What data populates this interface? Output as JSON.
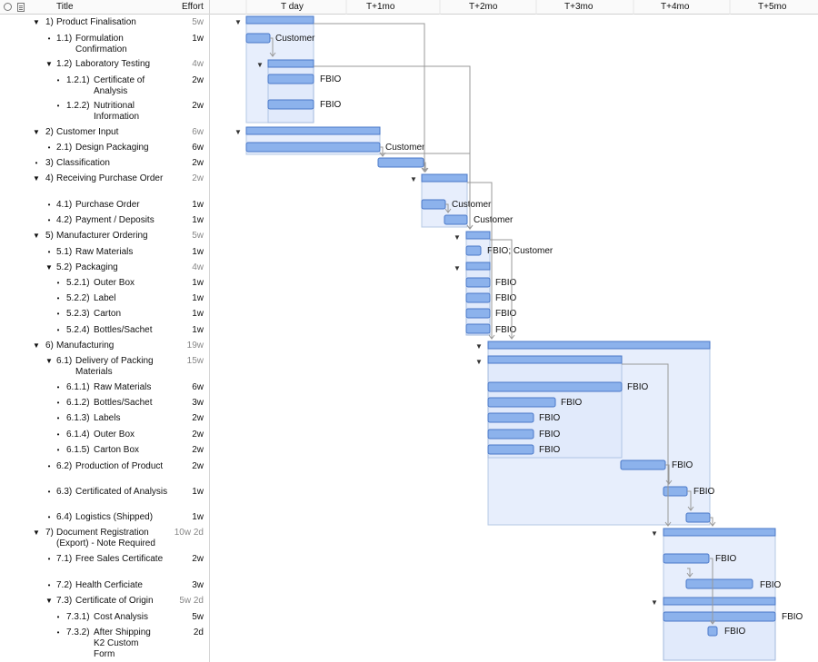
{
  "header": {
    "title_col": "Title",
    "effort_col": "Effort",
    "timeline": [
      "T day",
      "T+1mo",
      "T+2mo",
      "T+3mo",
      "T+4mo",
      "T+5mo"
    ]
  },
  "colors": {
    "bar_fill": "#8cb2ec",
    "bar_stroke": "#4a78c8",
    "group_bg": "#dfe9fb",
    "group_stroke": "#9db6dc",
    "arrow": "#999999",
    "grid": "#e6e6e6"
  },
  "rows": [
    {
      "num": "1)",
      "title": "Product Finalisation",
      "effort": "5w",
      "ctl": "tri",
      "indent": 0,
      "grey": true
    },
    {
      "num": "1.1)",
      "title": "Formulation Confirmation",
      "effort": "1w",
      "ctl": "dot",
      "indent": 1
    },
    {
      "num": "1.2)",
      "title": "Laboratory Testing",
      "effort": "4w",
      "ctl": "tri",
      "indent": 1,
      "grey": true
    },
    {
      "num": "1.2.1)",
      "title": "Certificate of Analysis",
      "effort": "2w",
      "ctl": "dot",
      "indent": 2
    },
    {
      "num": "1.2.2)",
      "title": "Nutritional Information",
      "effort": "2w",
      "ctl": "dot",
      "indent": 2
    },
    {
      "num": "2)",
      "title": "Customer Input",
      "effort": "6w",
      "ctl": "tri",
      "indent": 0,
      "grey": true
    },
    {
      "num": "2.1)",
      "title": "Design Packaging",
      "effort": "6w",
      "ctl": "dot",
      "indent": 1
    },
    {
      "num": "3)",
      "title": "Classification",
      "effort": "2w",
      "ctl": "dot",
      "indent": 0
    },
    {
      "num": "4)",
      "title": "Receiving Purchase Order",
      "effort": "2w",
      "ctl": "tri",
      "indent": 0,
      "grey": true
    },
    {
      "num": "4.1)",
      "title": "Purchase Order",
      "effort": "1w",
      "ctl": "dot",
      "indent": 1
    },
    {
      "num": "4.2)",
      "title": "Payment / Deposits",
      "effort": "1w",
      "ctl": "dot",
      "indent": 1
    },
    {
      "num": "5)",
      "title": "Manufacturer Ordering",
      "effort": "5w",
      "ctl": "tri",
      "indent": 0,
      "grey": true
    },
    {
      "num": "5.1)",
      "title": "Raw Materials",
      "effort": "1w",
      "ctl": "dot",
      "indent": 1
    },
    {
      "num": "5.2)",
      "title": "Packaging",
      "effort": "4w",
      "ctl": "tri",
      "indent": 1,
      "grey": true
    },
    {
      "num": "5.2.1)",
      "title": "Outer Box",
      "effort": "1w",
      "ctl": "dot",
      "indent": 2
    },
    {
      "num": "5.2.2)",
      "title": "Label",
      "effort": "1w",
      "ctl": "dot",
      "indent": 2
    },
    {
      "num": "5.2.3)",
      "title": "Carton",
      "effort": "1w",
      "ctl": "dot",
      "indent": 2
    },
    {
      "num": "5.2.4)",
      "title": "Bottles/Sachet",
      "effort": "1w",
      "ctl": "dot",
      "indent": 2
    },
    {
      "num": "6)",
      "title": "Manufacturing",
      "effort": "19w",
      "ctl": "tri",
      "indent": 0,
      "grey": true
    },
    {
      "num": "6.1)",
      "title": "Delivery of Packing Materials",
      "effort": "15w",
      "ctl": "tri",
      "indent": 1,
      "grey": true
    },
    {
      "num": "6.1.1)",
      "title": "Raw Materials",
      "effort": "6w",
      "ctl": "dot",
      "indent": 2
    },
    {
      "num": "6.1.2)",
      "title": "Bottles/Sachet",
      "effort": "3w",
      "ctl": "dot",
      "indent": 2
    },
    {
      "num": "6.1.3)",
      "title": "Labels",
      "effort": "2w",
      "ctl": "dot",
      "indent": 2
    },
    {
      "num": "6.1.4)",
      "title": "Outer Box",
      "effort": "2w",
      "ctl": "dot",
      "indent": 2
    },
    {
      "num": "6.1.5)",
      "title": "Carton Box",
      "effort": "2w",
      "ctl": "dot",
      "indent": 2
    },
    {
      "num": "6.2)",
      "title": "Production of Product",
      "effort": "2w",
      "ctl": "dot",
      "indent": 1
    },
    {
      "num": "6.3)",
      "title": "Certificated of Analysis",
      "effort": "1w",
      "ctl": "dot",
      "indent": 1
    },
    {
      "num": "6.4)",
      "title": "Logistics (Shipped)",
      "effort": "1w",
      "ctl": "dot",
      "indent": 1
    },
    {
      "num": "7)",
      "title": "Document Registration (Export) - Note Required",
      "effort": "10w 2d",
      "ctl": "tri",
      "indent": 0,
      "grey": true
    },
    {
      "num": "7.1)",
      "title": "Free Sales Certificate",
      "effort": "2w",
      "ctl": "dot",
      "indent": 1
    },
    {
      "num": "7.2)",
      "title": "Health Cerficiate",
      "effort": "3w",
      "ctl": "dot",
      "indent": 1
    },
    {
      "num": "7.3)",
      "title": "Certificate of Origin",
      "effort": "5w 2d",
      "ctl": "tri",
      "indent": 1,
      "grey": true
    },
    {
      "num": "7.3.1)",
      "title": "Cost Analysis",
      "effort": "5w",
      "ctl": "dot",
      "indent": 2
    },
    {
      "num": "7.3.2)",
      "title": "After Shipping K2 Custom Form",
      "effort": "2d",
      "ctl": "dot",
      "indent": 2
    }
  ],
  "gantt": {
    "resource_labels": [
      {
        "text": "Customer"
      },
      {
        "text": "FBIO"
      },
      {
        "text": "FBIO"
      },
      {
        "text": "Customer"
      },
      {
        "text": "Customer"
      },
      {
        "text": "Customer"
      },
      {
        "text": "FBIO; Customer"
      },
      {
        "text": "FBIO"
      },
      {
        "text": "FBIO"
      },
      {
        "text": "FBIO"
      },
      {
        "text": "FBIO"
      },
      {
        "text": "FBIO"
      },
      {
        "text": "FBIO"
      },
      {
        "text": "FBIO"
      },
      {
        "text": "FBIO"
      },
      {
        "text": "FBIO"
      },
      {
        "text": "FBIO"
      },
      {
        "text": "FBIO"
      },
      {
        "text": "FBIO"
      },
      {
        "text": "FBIO"
      },
      {
        "text": "FBIO"
      },
      {
        "text": "FBIO"
      }
    ]
  }
}
